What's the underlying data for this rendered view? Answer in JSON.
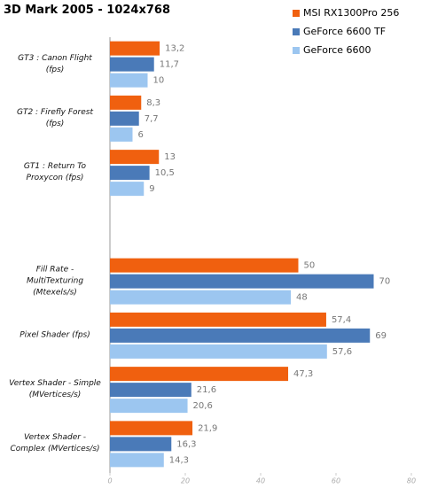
{
  "chart_data": {
    "type": "hbar",
    "title": "3D Mark 2005 - 1024x768",
    "categories": [
      "GT3 : Canon Flight\n(fps)",
      "GT2 : Firefly Forest\n(fps)",
      "GT1 : Return To\nProxycon (fps)",
      null,
      "Fill Rate -\nMultiTexturing\n(Mtexels/s)",
      "Pixel Shader (fps)",
      "Vertex Shader - Simple\n(MVertices/s)",
      "Vertex Shader -\nComplex  (MVertices/s)"
    ],
    "series": [
      {
        "name": "MSI RX1300Pro 256",
        "color": "#f0600f",
        "values": [
          13.2,
          8.3,
          13,
          null,
          50,
          57.4,
          47.3,
          21.9
        ],
        "value_labels": [
          "13,2",
          "8,3",
          "13",
          null,
          "50",
          "57,4",
          "47,3",
          "21,9"
        ]
      },
      {
        "name": "GeForce 6600 TF",
        "color": "#4a7ab8",
        "values": [
          11.7,
          7.7,
          10.5,
          null,
          70,
          69,
          21.6,
          16.3
        ],
        "value_labels": [
          "11,7",
          "7,7",
          "10,5",
          null,
          "70",
          "69",
          "21,6",
          "16,3"
        ]
      },
      {
        "name": "GeForce 6600",
        "color": "#9cc6f0",
        "values": [
          10,
          6,
          9,
          null,
          48,
          57.6,
          20.6,
          14.3
        ],
        "value_labels": [
          "10",
          "6",
          "9",
          null,
          "48",
          "57,6",
          "20,6",
          "14,3"
        ]
      }
    ],
    "xlim": [
      0,
      80
    ],
    "xticks": [
      0,
      20,
      40,
      60,
      80
    ],
    "legend": "top-right"
  }
}
